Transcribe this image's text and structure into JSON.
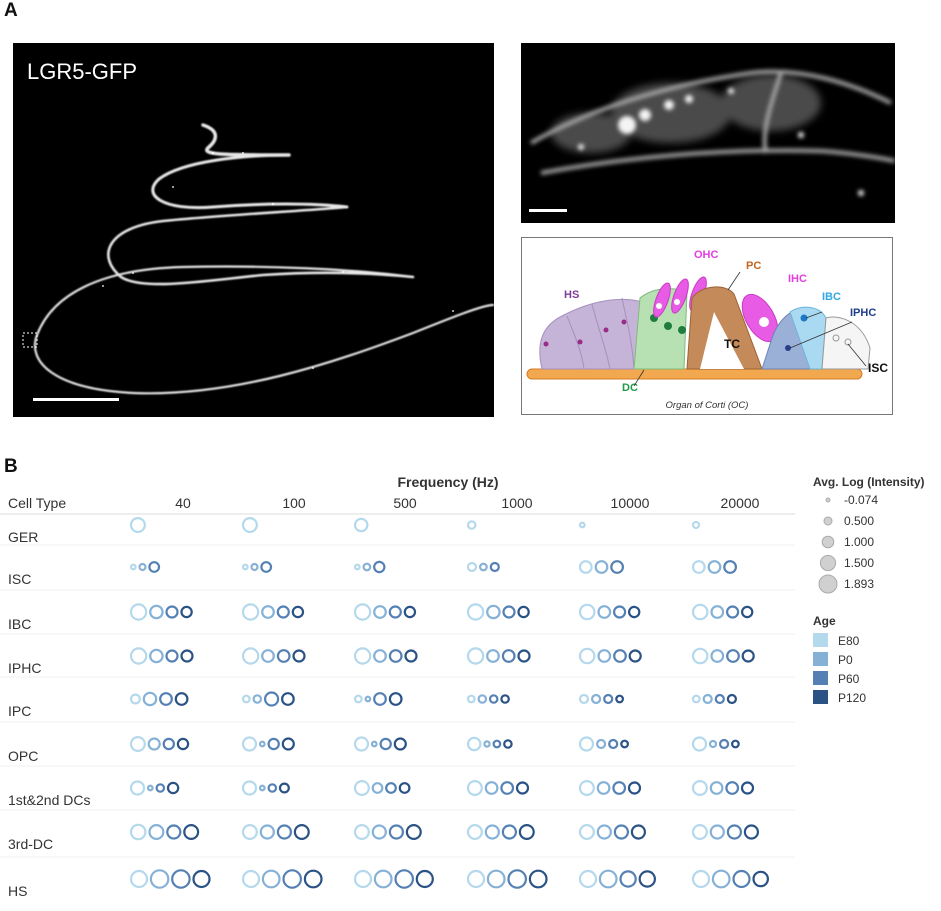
{
  "panel_a": {
    "letter": "A",
    "image_label": "LGR5-GFP",
    "diagram": {
      "caption": "Organ of Corti (OC)",
      "labels": {
        "hs": "HS",
        "ohc": "OHC",
        "pc": "PC",
        "ihc": "IHC",
        "ibc": "IBC",
        "iphc": "IPHC",
        "isc": "ISC",
        "tc": "TC",
        "dc": "DC"
      },
      "colors": {
        "hs": "#7d3c98",
        "ohc": "#e43ee1",
        "pc": "#c8651b",
        "ihc": "#e43ee1",
        "ibc": "#2fa8e0",
        "iphc": "#1f3d8c",
        "isc": "#111111",
        "tc": "#111111",
        "dc": "#1f9a46"
      }
    }
  },
  "panel_b": {
    "letter": "B",
    "chart_data": {
      "type": "scatter",
      "title": "Frequency (Hz)",
      "row_header": "Cell Type",
      "frequencies": [
        "40",
        "100",
        "500",
        "1000",
        "10000",
        "20000"
      ],
      "cell_types": [
        "GER",
        "ISC",
        "IBC",
        "IPHC",
        "IPC",
        "OPC",
        "1st&2nd DCs",
        "3rd-DC",
        "HS"
      ],
      "ages": [
        "E80",
        "P0",
        "P60",
        "P120"
      ],
      "age_colors": [
        "#b4d8ec",
        "#86b1d6",
        "#5580b3",
        "#2a5285"
      ],
      "size_legend": {
        "title": "Avg. Log (Intensity)",
        "values": [
          -0.074,
          0.5,
          1.0,
          1.5,
          1.893
        ],
        "labels": [
          "-0.074",
          "0.500",
          "1.000",
          "1.500",
          "1.893"
        ]
      },
      "color_legend_title": "Age",
      "series": [
        {
          "cell_type": "GER",
          "values": [
            [
              1.3,
              null,
              null,
              null
            ],
            [
              1.3,
              null,
              null,
              null
            ],
            [
              1.1,
              null,
              null,
              null
            ],
            [
              0.4,
              null,
              null,
              null
            ],
            [
              0.0,
              null,
              null,
              null
            ],
            [
              0.2,
              null,
              null,
              null
            ]
          ]
        },
        {
          "cell_type": "ISC",
          "values": [
            [
              0.0,
              0.2,
              0.7,
              null
            ],
            [
              0.0,
              0.2,
              0.7,
              null
            ],
            [
              0.0,
              0.3,
              0.8,
              null
            ],
            [
              0.5,
              0.3,
              0.5,
              null
            ],
            [
              1.0,
              1.0,
              1.0,
              null
            ],
            [
              1.0,
              1.0,
              1.0,
              null
            ]
          ]
        },
        {
          "cell_type": "IBC",
          "values": [
            [
              1.5,
              1.1,
              0.9,
              0.8
            ],
            [
              1.5,
              1.0,
              0.9,
              0.8
            ],
            [
              1.5,
              1.0,
              0.9,
              0.8
            ],
            [
              1.5,
              1.1,
              0.9,
              0.8
            ],
            [
              1.4,
              1.0,
              0.9,
              0.8
            ],
            [
              1.4,
              1.0,
              0.9,
              0.8
            ]
          ]
        },
        {
          "cell_type": "IPHC",
          "values": [
            [
              1.5,
              1.1,
              0.9,
              0.9
            ],
            [
              1.5,
              1.0,
              1.0,
              0.9
            ],
            [
              1.5,
              1.0,
              1.0,
              0.9
            ],
            [
              1.5,
              1.0,
              1.0,
              0.9
            ],
            [
              1.4,
              1.0,
              1.0,
              0.9
            ],
            [
              1.4,
              1.0,
              1.0,
              0.9
            ]
          ]
        },
        {
          "cell_type": "IPC",
          "values": [
            [
              0.6,
              1.1,
              1.0,
              1.0
            ],
            [
              0.3,
              0.4,
              1.2,
              1.0
            ],
            [
              0.3,
              0.0,
              1.0,
              1.0
            ],
            [
              0.3,
              0.4,
              0.4,
              0.4
            ],
            [
              0.5,
              0.5,
              0.5,
              0.3
            ],
            [
              0.3,
              0.5,
              0.5,
              0.5
            ]
          ]
        },
        {
          "cell_type": "OPC",
          "values": [
            [
              1.3,
              0.9,
              0.8,
              0.8
            ],
            [
              1.2,
              0.0,
              0.8,
              0.9
            ],
            [
              1.2,
              0.0,
              0.8,
              0.9
            ],
            [
              1.1,
              0.1,
              0.3,
              0.4
            ],
            [
              1.2,
              0.5,
              0.5,
              0.3
            ],
            [
              1.2,
              0.2,
              0.5,
              0.3
            ]
          ]
        },
        {
          "cell_type": "1st&2nd DCs",
          "values": [
            [
              1.2,
              0.0,
              0.4,
              0.8
            ],
            [
              1.2,
              0.0,
              0.4,
              0.6
            ],
            [
              1.3,
              0.7,
              0.7,
              0.7
            ],
            [
              1.3,
              1.0,
              1.0,
              0.9
            ],
            [
              1.3,
              1.0,
              1.0,
              0.9
            ],
            [
              1.3,
              1.0,
              1.0,
              0.9
            ]
          ]
        },
        {
          "cell_type": "3rd-DC",
          "values": [
            [
              1.4,
              1.3,
              1.2,
              1.3
            ],
            [
              1.3,
              1.2,
              1.2,
              1.3
            ],
            [
              1.3,
              1.2,
              1.2,
              1.3
            ],
            [
              1.3,
              1.2,
              1.2,
              1.3
            ],
            [
              1.3,
              1.2,
              1.2,
              1.2
            ],
            [
              1.3,
              1.2,
              1.2,
              1.2
            ]
          ]
        },
        {
          "cell_type": "HS",
          "values": [
            [
              1.6,
              1.8,
              1.8,
              1.6
            ],
            [
              1.6,
              1.7,
              1.8,
              1.7
            ],
            [
              1.6,
              1.7,
              1.8,
              1.6
            ],
            [
              1.6,
              1.7,
              1.8,
              1.7
            ],
            [
              1.6,
              1.7,
              1.5,
              1.5
            ],
            [
              1.6,
              1.7,
              1.6,
              1.4
            ]
          ]
        }
      ]
    }
  }
}
